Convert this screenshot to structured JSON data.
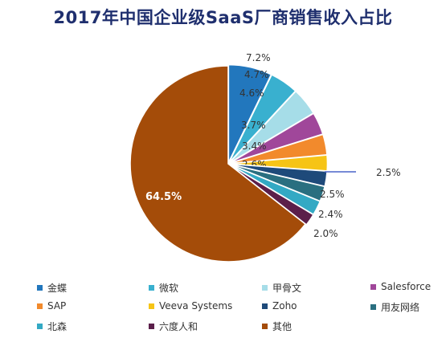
{
  "title": "2017年中国企业级SaaS厂商销售收入占比",
  "chart_data": {
    "type": "pie",
    "title": "2017年中国企业级SaaS厂商销售收入占比",
    "legend_position": "bottom",
    "slices": [
      {
        "name": "金蝶",
        "value": 7.2,
        "label": "7.2%",
        "color": "#2277bd"
      },
      {
        "name": "微软",
        "value": 4.7,
        "label": "4.7%",
        "color": "#39b0cf"
      },
      {
        "name": "甲骨文",
        "value": 4.6,
        "label": "4.6%",
        "color": "#a6dde8"
      },
      {
        "name": "Salesforce",
        "value": 3.7,
        "label": "3.7%",
        "color": "#a0479a"
      },
      {
        "name": "SAP",
        "value": 3.4,
        "label": "3.4%",
        "color": "#f28a2c"
      },
      {
        "name": "Veeva Systems",
        "value": 2.6,
        "label": "2.6%",
        "color": "#f6c416"
      },
      {
        "name": "Zoho",
        "value": 2.5,
        "label": "2.5%",
        "color": "#1e4a7a"
      },
      {
        "name": "用友网络",
        "value": 2.5,
        "label": "2.5%",
        "color": "#2a6f80"
      },
      {
        "name": "北森",
        "value": 2.4,
        "label": "2.4%",
        "color": "#33a9c4"
      },
      {
        "name": "六度人和",
        "value": 2.0,
        "label": "2.0%",
        "color": "#5b1f4a"
      },
      {
        "name": "其他",
        "value": 64.5,
        "label": "64.5%",
        "color": "#a44c09"
      }
    ]
  }
}
